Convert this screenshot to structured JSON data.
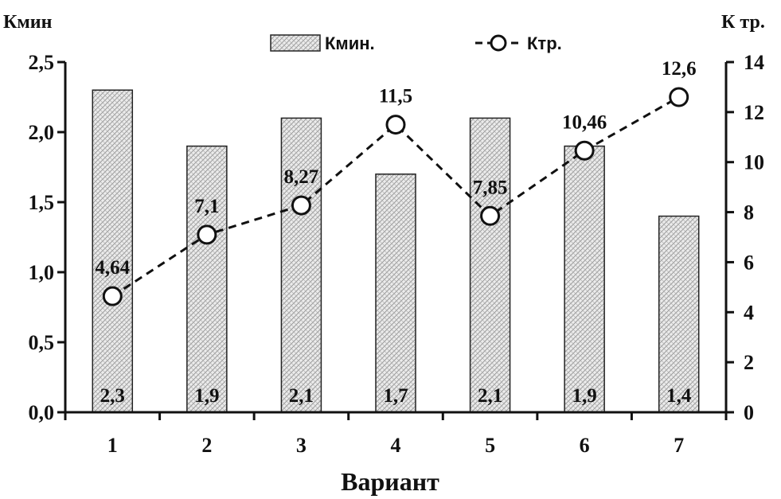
{
  "chart_data": {
    "type": "bar",
    "categories": [
      "1",
      "2",
      "3",
      "4",
      "5",
      "6",
      "7"
    ],
    "xlabel": "Вариант",
    "y_left": {
      "label": "Кмин",
      "ylim": [
        0,
        2.5
      ],
      "ticks": [
        "0,0",
        "0,5",
        "1,0",
        "1,5",
        "2,0",
        "2,5"
      ]
    },
    "y_right": {
      "label": "К тр.",
      "ylim": [
        0,
        14
      ],
      "ticks": [
        "0",
        "2",
        "4",
        "6",
        "8",
        "10",
        "12",
        "14"
      ]
    },
    "series": [
      {
        "name": "Кмин.",
        "type": "bar",
        "axis": "left",
        "values": [
          2.3,
          1.9,
          2.1,
          1.7,
          2.1,
          1.9,
          1.4
        ],
        "labels": [
          "2,3",
          "1,9",
          "2,1",
          "1,7",
          "2,1",
          "1,9",
          "1,4"
        ]
      },
      {
        "name": "Ктр.",
        "type": "line",
        "axis": "right",
        "values": [
          4.64,
          7.1,
          8.27,
          11.5,
          7.85,
          10.46,
          12.6
        ],
        "labels": [
          "4,64",
          "7,1",
          "8,27",
          "11,5",
          "7,85",
          "10,46",
          "12,6"
        ]
      }
    ],
    "legend_position": "top",
    "grid": false
  }
}
